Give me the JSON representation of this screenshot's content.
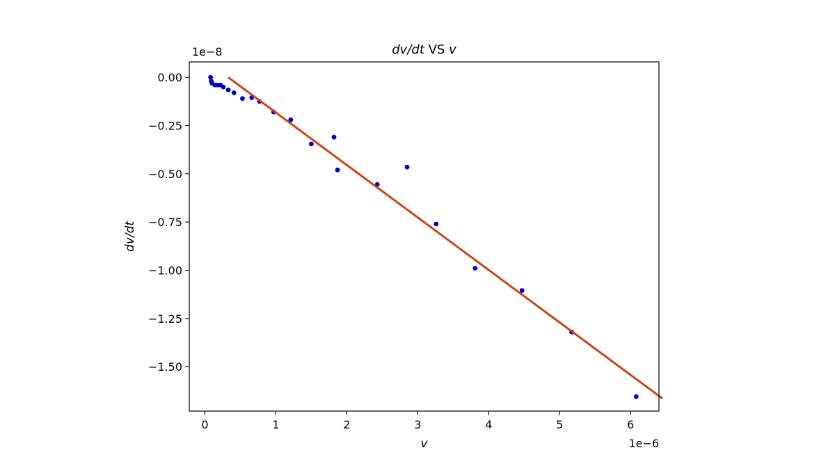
{
  "chart_data": {
    "type": "scatter",
    "title": "dv/dt VS v",
    "title_parts": {
      "lhs": "dv/dt",
      "mid": " VS ",
      "rhs": "v"
    },
    "xlabel": "v",
    "ylabel": "dv/dt",
    "x_offset_text": "1e−6",
    "y_offset_text": "1e−8",
    "x_scale_exp": -6,
    "y_scale_exp": -8,
    "xlim": [
      -0.22,
      6.4
    ],
    "ylim": [
      -1.73,
      0.08
    ],
    "x_ticks": [
      0,
      1,
      2,
      3,
      4,
      5,
      6
    ],
    "x_tick_labels": [
      "0",
      "1",
      "2",
      "3",
      "4",
      "5",
      "6"
    ],
    "y_ticks": [
      0.0,
      -0.25,
      -0.5,
      -0.75,
      -1.0,
      -1.25,
      -1.5
    ],
    "y_tick_labels": [
      "0.00",
      "−0.25",
      "−0.50",
      "−0.75",
      "−1.00",
      "−1.25",
      "−1.50"
    ],
    "grid": false,
    "legend": "none",
    "series": [
      {
        "kind": "scatter",
        "color": "#0000cc",
        "points": [
          {
            "x": 0.08,
            "y": 0.0
          },
          {
            "x": 0.09,
            "y": -0.02
          },
          {
            "x": 0.1,
            "y": -0.03
          },
          {
            "x": 0.14,
            "y": -0.04
          },
          {
            "x": 0.18,
            "y": -0.04
          },
          {
            "x": 0.22,
            "y": -0.04
          },
          {
            "x": 0.26,
            "y": -0.05
          },
          {
            "x": 0.33,
            "y": -0.065
          },
          {
            "x": 0.41,
            "y": -0.08
          },
          {
            "x": 0.53,
            "y": -0.11
          },
          {
            "x": 0.66,
            "y": -0.105
          },
          {
            "x": 0.77,
            "y": -0.125
          },
          {
            "x": 0.97,
            "y": -0.18
          },
          {
            "x": 1.21,
            "y": -0.22
          },
          {
            "x": 1.5,
            "y": -0.345
          },
          {
            "x": 1.82,
            "y": -0.31
          },
          {
            "x": 1.87,
            "y": -0.48
          },
          {
            "x": 2.43,
            "y": -0.555
          },
          {
            "x": 2.85,
            "y": -0.465
          },
          {
            "x": 3.26,
            "y": -0.76
          },
          {
            "x": 3.81,
            "y": -0.99
          },
          {
            "x": 4.47,
            "y": -1.105
          },
          {
            "x": 5.17,
            "y": -1.32
          },
          {
            "x": 6.08,
            "y": -1.655
          }
        ]
      },
      {
        "kind": "line",
        "color": "#cc4411",
        "x": [
          0.33,
          6.45
        ],
        "y": [
          0.0,
          -1.665
        ]
      }
    ]
  }
}
